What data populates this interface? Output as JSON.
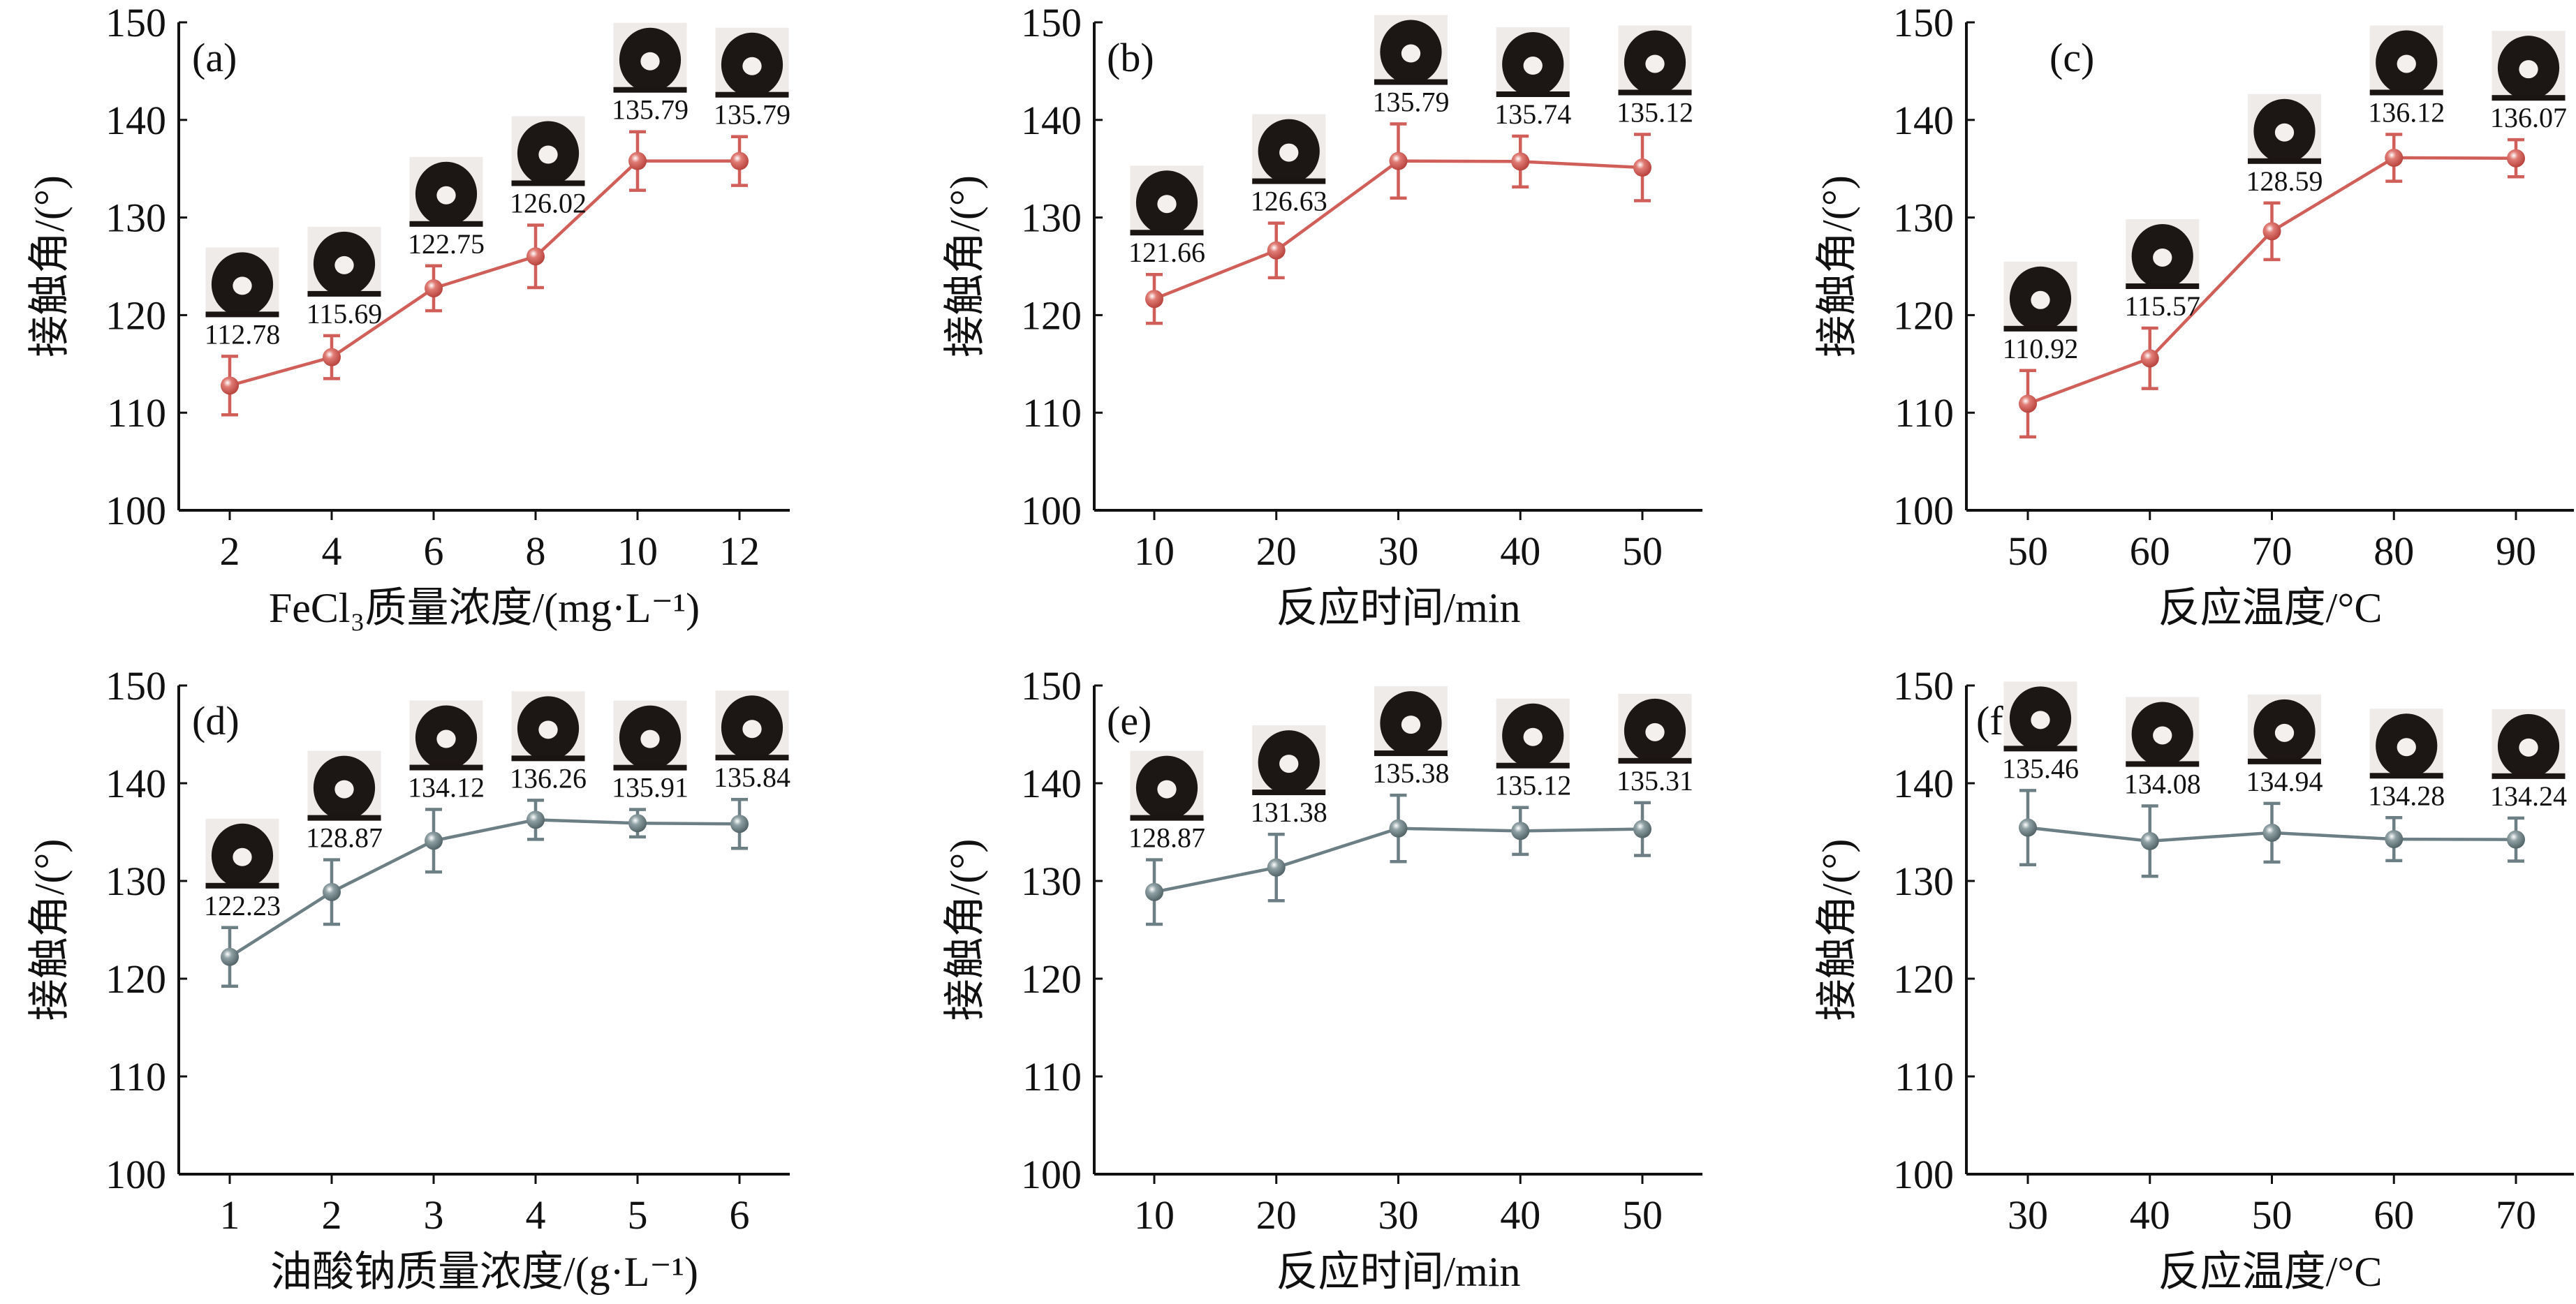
{
  "chart_data": [
    {
      "type": "line",
      "panel": "(a)",
      "xlabel": "FeCl₃质量浓度/(mg·L⁻¹)",
      "ylabel": "接触角/(°)",
      "x": [
        2,
        4,
        6,
        8,
        10,
        12
      ],
      "xticks": [
        "2",
        "4",
        "6",
        "8",
        "10",
        "12"
      ],
      "values": [
        112.78,
        115.69,
        122.75,
        126.02,
        135.79,
        135.79
      ],
      "errors": [
        3.0,
        2.2,
        2.3,
        3.2,
        3.0,
        2.5
      ],
      "data_labels": [
        "112.78",
        "115.69",
        "122.75",
        "126.02",
        "135.79",
        "135.79"
      ],
      "ylim": [
        100,
        150
      ],
      "yticks": [
        100,
        110,
        120,
        130,
        140,
        150
      ],
      "color": "#cf5f58",
      "grid": false,
      "has_droplet_images": true
    },
    {
      "type": "line",
      "panel": "(b)",
      "xlabel": "反应时间/min",
      "ylabel": "接触角/(°)",
      "x": [
        10,
        20,
        30,
        40,
        50
      ],
      "xticks": [
        "10",
        "20",
        "30",
        "40",
        "50"
      ],
      "values": [
        121.66,
        126.63,
        135.79,
        135.74,
        135.12
      ],
      "errors": [
        2.5,
        2.8,
        3.8,
        2.6,
        3.4
      ],
      "data_labels": [
        "121.66",
        "126.63",
        "135.79",
        "135.74",
        "135.12"
      ],
      "ylim": [
        100,
        150
      ],
      "yticks": [
        100,
        110,
        120,
        130,
        140,
        150
      ],
      "color": "#cf5f58",
      "grid": false,
      "has_droplet_images": true
    },
    {
      "type": "line",
      "panel": "(c)",
      "xlabel": "反应温度/°C",
      "ylabel": "接触角/(°)",
      "x": [
        50,
        60,
        70,
        80,
        90
      ],
      "xticks": [
        "50",
        "60",
        "70",
        "80",
        "90"
      ],
      "values": [
        110.92,
        115.57,
        128.59,
        136.12,
        136.07
      ],
      "errors": [
        3.4,
        3.1,
        2.9,
        2.4,
        1.9
      ],
      "data_labels": [
        "110.92",
        "115.57",
        "128.59",
        "136.12",
        "136.07"
      ],
      "ylim": [
        100,
        150
      ],
      "yticks": [
        100,
        110,
        120,
        130,
        140,
        150
      ],
      "color": "#cf5f58",
      "grid": false,
      "has_droplet_images": true
    },
    {
      "type": "line",
      "panel": "(d)",
      "xlabel": "油酸钠质量浓度/(g·L⁻¹)",
      "ylabel": "接触角/(°)",
      "x": [
        1,
        2,
        3,
        4,
        5,
        6
      ],
      "xticks": [
        "1",
        "2",
        "3",
        "4",
        "5",
        "6"
      ],
      "values": [
        122.23,
        128.87,
        134.12,
        136.26,
        135.91,
        135.84
      ],
      "errors": [
        3.0,
        3.3,
        3.2,
        2.0,
        1.4,
        2.5
      ],
      "data_labels": [
        "122.23",
        "128.87",
        "134.12",
        "136.26",
        "135.91",
        "135.84"
      ],
      "ylim": [
        100,
        150
      ],
      "yticks": [
        100,
        110,
        120,
        130,
        140,
        150
      ],
      "color": "#6b7f84",
      "grid": false,
      "has_droplet_images": true
    },
    {
      "type": "line",
      "panel": "(e)",
      "xlabel": "反应时间/min",
      "ylabel": "接触角/(°)",
      "x": [
        10,
        20,
        30,
        40,
        50
      ],
      "xticks": [
        "10",
        "20",
        "30",
        "40",
        "50"
      ],
      "values": [
        128.87,
        131.38,
        135.38,
        135.12,
        135.31
      ],
      "errors": [
        3.3,
        3.4,
        3.4,
        2.4,
        2.7
      ],
      "data_labels": [
        "128.87",
        "131.38",
        "135.38",
        "135.12",
        "135.31"
      ],
      "ylim": [
        100,
        150
      ],
      "yticks": [
        100,
        110,
        120,
        130,
        140,
        150
      ],
      "color": "#6b7f84",
      "grid": false,
      "has_droplet_images": true
    },
    {
      "type": "line",
      "panel": "(f)",
      "xlabel": "反应温度/°C",
      "ylabel": "接触角/(°)",
      "x": [
        30,
        40,
        50,
        60,
        70
      ],
      "xticks": [
        "30",
        "40",
        "50",
        "60",
        "70"
      ],
      "values": [
        135.46,
        134.08,
        134.94,
        134.28,
        134.24
      ],
      "errors": [
        3.8,
        3.6,
        3.0,
        2.2,
        2.2
      ],
      "data_labels": [
        "135.46",
        "134.08",
        "134.94",
        "134.28",
        "134.24"
      ],
      "ylim": [
        100,
        150
      ],
      "yticks": [
        100,
        110,
        120,
        130,
        140,
        150
      ],
      "color": "#6b7f84",
      "grid": false,
      "has_droplet_images": true
    }
  ]
}
